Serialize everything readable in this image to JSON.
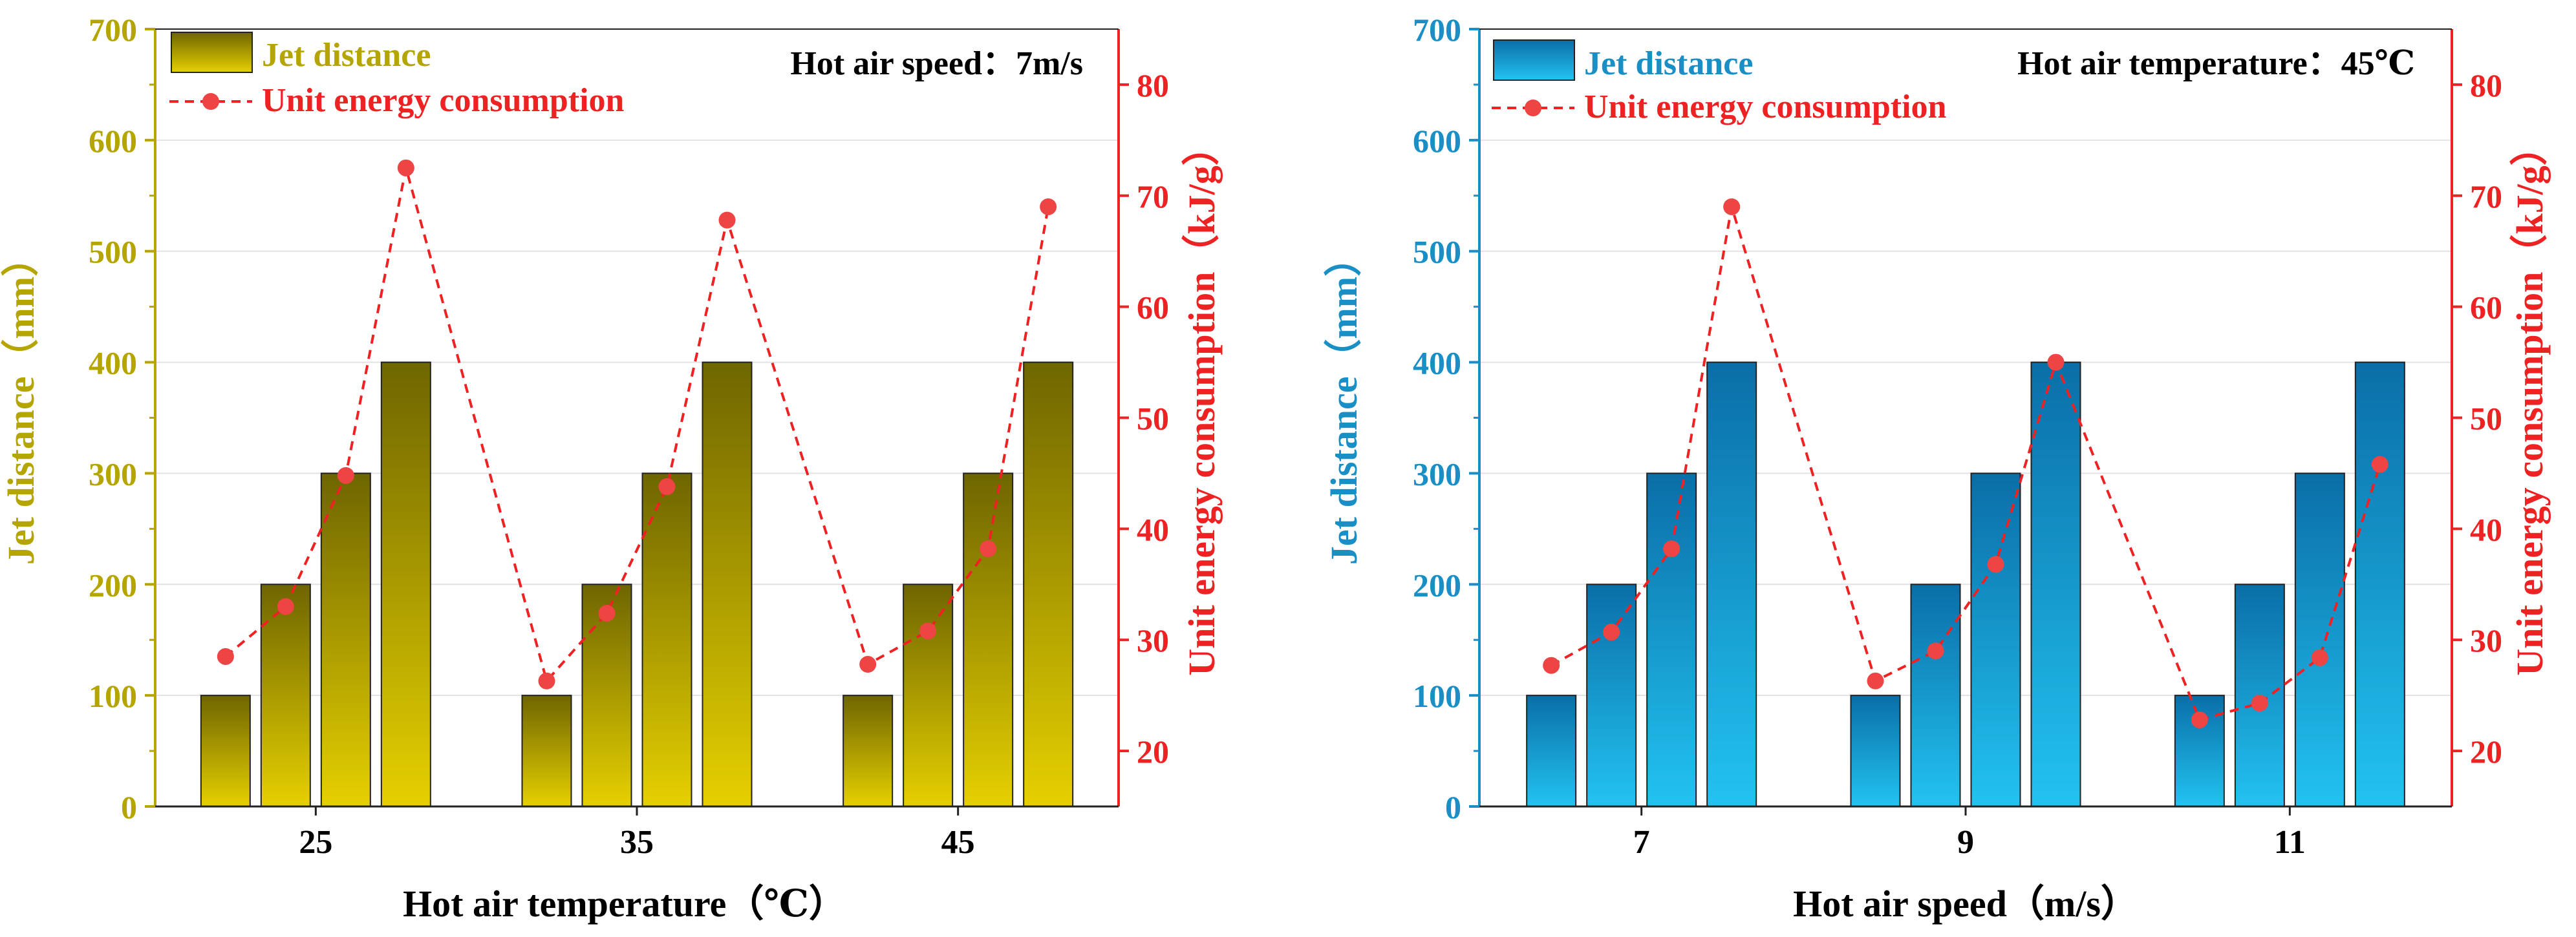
{
  "colors": {
    "left_axis": "#b5a500",
    "left_bar_top": "#6e6500",
    "left_bar_bottom": "#e6d000",
    "right_axis": "#ee2222",
    "left2_axis": "#1a8fc6",
    "left2_bar_top": "#0a6ea8",
    "left2_bar_bottom": "#22c3f0",
    "grid": "#dddddd"
  },
  "chart_data": [
    {
      "type": "bar",
      "title": "",
      "annotation": "Hot air speed：7m/s",
      "xlabel": "Hot air temperature（℃）",
      "ylabel": "Jet distance（mm）",
      "y2label": "Unit energy consumption（kJ/g）",
      "categories": [
        "25",
        "35",
        "45"
      ],
      "ylim": [
        0,
        700
      ],
      "yticks": [
        "0",
        "100",
        "200",
        "300",
        "400",
        "500",
        "600",
        "700"
      ],
      "y2lim": [
        15,
        85
      ],
      "y2ticks": [
        "20",
        "30",
        "40",
        "50",
        "60",
        "70",
        "80"
      ],
      "grid": true,
      "legend_position": "top-left",
      "series": [
        {
          "name": "Jet distance",
          "kind": "bar",
          "values": [
            [
              100,
              200,
              300,
              400
            ],
            [
              100,
              200,
              300,
              400
            ],
            [
              100,
              200,
              300,
              400
            ]
          ]
        },
        {
          "name": "Unit energy consumption",
          "kind": "line",
          "values": [
            [
              28.5,
              33,
              44.8,
              72.5
            ],
            [
              26.3,
              32.4,
              43.8,
              67.8
            ],
            [
              27.8,
              30.8,
              38.2,
              69
            ]
          ]
        }
      ]
    },
    {
      "type": "bar",
      "title": "",
      "annotation": "Hot air temperature：45℃",
      "xlabel": "Hot air speed（m/s）",
      "ylabel": "Jet distance（mm）",
      "y2label": "Unit energy consumption（kJ/g）",
      "categories": [
        "7",
        "9",
        "11"
      ],
      "ylim": [
        0,
        700
      ],
      "yticks": [
        "0",
        "100",
        "200",
        "300",
        "400",
        "500",
        "600",
        "700"
      ],
      "y2lim": [
        15,
        85
      ],
      "y2ticks": [
        "20",
        "30",
        "40",
        "50",
        "60",
        "70",
        "80"
      ],
      "grid": true,
      "legend_position": "top-left",
      "series": [
        {
          "name": "Jet distance",
          "kind": "bar",
          "values": [
            [
              100,
              200,
              300,
              400
            ],
            [
              100,
              200,
              300,
              400
            ],
            [
              100,
              200,
              300,
              400
            ]
          ]
        },
        {
          "name": "Unit energy consumption",
          "kind": "line",
          "values": [
            [
              27.7,
              30.7,
              38.2,
              69
            ],
            [
              26.3,
              29,
              36.8,
              55
            ],
            [
              22.8,
              24.3,
              28.4,
              45.8
            ]
          ]
        }
      ]
    }
  ]
}
